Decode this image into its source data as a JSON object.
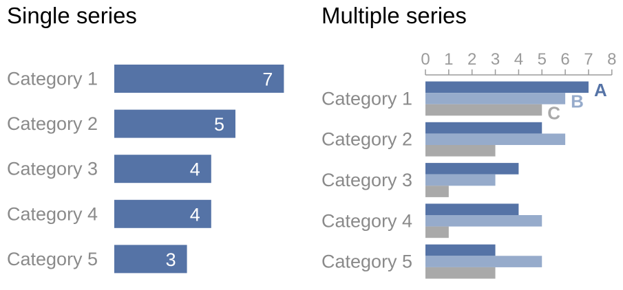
{
  "colors": {
    "series_a": "#5573a6",
    "series_b": "#96abcb",
    "series_c": "#a9a9a9",
    "label_gray": "#8a8a8a",
    "axis_gray": "#9a9a9a"
  },
  "chart_data": [
    {
      "type": "bar",
      "orientation": "horizontal",
      "title": "Single series",
      "categories": [
        "Category 1",
        "Category 2",
        "Category 3",
        "Category 4",
        "Category 5"
      ],
      "values": [
        7,
        5,
        4,
        4,
        3
      ],
      "data_labels": true,
      "grid": false
    },
    {
      "type": "bar",
      "orientation": "horizontal",
      "title": "Multiple series",
      "categories": [
        "Category 1",
        "Category 2",
        "Category 3",
        "Category 4",
        "Category 5"
      ],
      "series": [
        {
          "name": "A",
          "values": [
            7,
            5,
            4,
            4,
            3
          ]
        },
        {
          "name": "B",
          "values": [
            6,
            6,
            3,
            5,
            5
          ]
        },
        {
          "name": "C",
          "values": [
            5,
            3,
            1,
            1,
            3
          ]
        }
      ],
      "xlim": [
        0,
        8
      ],
      "xticks": [
        "0",
        "1",
        "2",
        "3",
        "4",
        "5",
        "6",
        "7",
        "8"
      ],
      "axis_position": "top",
      "grid": false,
      "legend": "labels at end of Category 1 bars"
    }
  ]
}
